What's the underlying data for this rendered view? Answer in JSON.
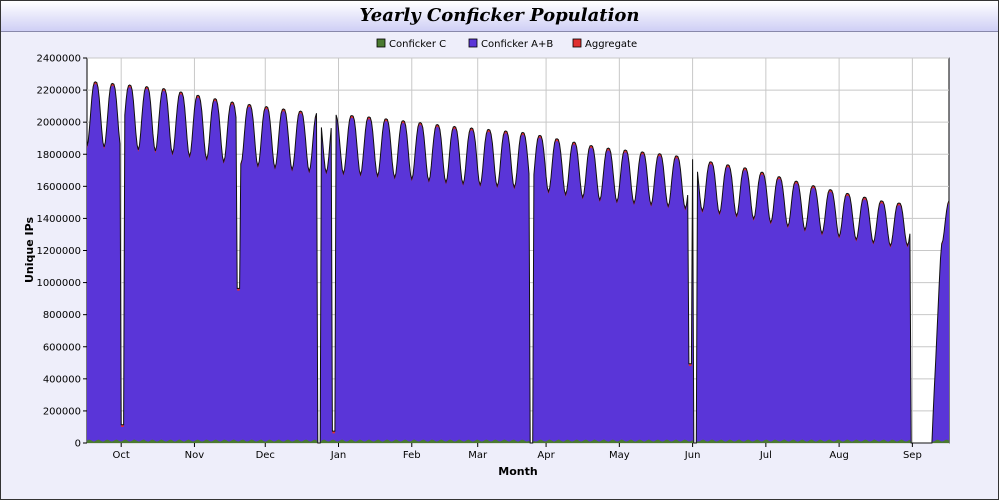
{
  "chart_data": {
    "type": "area",
    "title": "Yearly Conficker Population",
    "xlabel": "Month",
    "ylabel": "Unique IPs",
    "ylim": [
      0,
      2400000
    ],
    "yticks": [
      0,
      200000,
      400000,
      600000,
      800000,
      1000000,
      1200000,
      1400000,
      1600000,
      1800000,
      2000000,
      2200000,
      2400000
    ],
    "x_range_days": [
      0,
      353
    ],
    "month_ticks": [
      {
        "label": "Oct",
        "day": 14
      },
      {
        "label": "Nov",
        "day": 44
      },
      {
        "label": "Dec",
        "day": 73
      },
      {
        "label": "Jan",
        "day": 103
      },
      {
        "label": "Feb",
        "day": 133
      },
      {
        "label": "Mar",
        "day": 160
      },
      {
        "label": "Apr",
        "day": 188
      },
      {
        "label": "May",
        "day": 218
      },
      {
        "label": "Jun",
        "day": 248
      },
      {
        "label": "Jul",
        "day": 278
      },
      {
        "label": "Aug",
        "day": 308
      },
      {
        "label": "Sep",
        "day": 338
      }
    ],
    "grid": true,
    "legend_position": "top-center",
    "series": [
      {
        "name": "Conficker C",
        "color": "#4a7a30",
        "values_typical": 15000
      },
      {
        "name": "Conficker A+B",
        "color": "#5a35d8",
        "weekly_peaks_approx": [
          {
            "day": 2,
            "value": 2240000
          },
          {
            "day": 30,
            "value": 2200000
          },
          {
            "day": 60,
            "value": 2110000
          },
          {
            "day": 90,
            "value": 2050000
          },
          {
            "day": 115,
            "value": 2020000
          },
          {
            "day": 150,
            "value": 1960000
          },
          {
            "day": 180,
            "value": 1920000
          },
          {
            "day": 210,
            "value": 1830000
          },
          {
            "day": 240,
            "value": 1780000
          },
          {
            "day": 270,
            "value": 1700000
          },
          {
            "day": 300,
            "value": 1580000
          },
          {
            "day": 330,
            "value": 1480000
          },
          {
            "day": 352,
            "value": 1500000
          }
        ],
        "outages": [
          {
            "day": 14.5,
            "value": 100000
          },
          {
            "day": 62,
            "value": 950000
          },
          {
            "day": 95,
            "value": 0
          },
          {
            "day": 101,
            "value": 60000
          },
          {
            "day": 182,
            "value": 0
          },
          {
            "day": 247,
            "value": 480000
          },
          {
            "day": 249,
            "value": 0
          },
          {
            "day": 338,
            "value": 0
          }
        ]
      },
      {
        "name": "Aggregate",
        "color": "#e03030"
      }
    ]
  }
}
